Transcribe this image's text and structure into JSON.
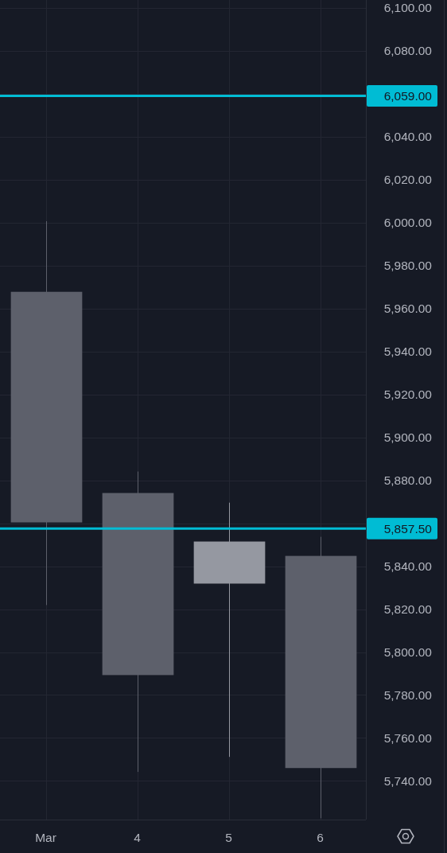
{
  "chart_data": {
    "type": "candlestick",
    "categories": [
      "Mar",
      "4",
      "5",
      "6"
    ],
    "ohlc": [
      [
        5967.8,
        6000.7,
        5821.9,
        5860.4
      ],
      [
        5874.1,
        5884.1,
        5744.2,
        5789.3
      ],
      [
        5831.9,
        5869.6,
        5751.2,
        5851.5
      ],
      [
        5844.8,
        5853.7,
        5722.6,
        5746.0
      ]
    ],
    "colors": [
      "#5d606b",
      "#5d606b",
      "#9598a1",
      "#5d606b"
    ],
    "ylim": [
      5722,
      6103.7
    ],
    "yticks": [
      {
        "value": 5740,
        "label": "5,740.00"
      },
      {
        "value": 5760,
        "label": "5,760.00"
      },
      {
        "value": 5780,
        "label": "5,780.00"
      },
      {
        "value": 5800,
        "label": "5,800.00"
      },
      {
        "value": 5820,
        "label": "5,820.00"
      },
      {
        "value": 5840,
        "label": "5,840.00"
      },
      {
        "value": 5860,
        "label": null
      },
      {
        "value": 5880,
        "label": "5,880.00"
      },
      {
        "value": 5900,
        "label": "5,900.00"
      },
      {
        "value": 5920,
        "label": "5,920.00"
      },
      {
        "value": 5940,
        "label": "5,940.00"
      },
      {
        "value": 5960,
        "label": "5,960.00"
      },
      {
        "value": 5980,
        "label": "5,980.00"
      },
      {
        "value": 6000,
        "label": "6,000.00"
      },
      {
        "value": 6020,
        "label": "6,020.00"
      },
      {
        "value": 6040,
        "label": "6,040.00"
      },
      {
        "value": 6060,
        "label": null
      },
      {
        "value": 6080,
        "label": "6,080.00"
      },
      {
        "value": 6100,
        "label": "6,100.00"
      }
    ],
    "grid": true,
    "ref_lines": [
      {
        "axis": "y",
        "value": 6059,
        "label": "6,059.00",
        "color": "#00bcd4"
      },
      {
        "axis": "y",
        "value": 5857.5,
        "label": "5,857.50",
        "color": "#00bcd4"
      }
    ]
  }
}
